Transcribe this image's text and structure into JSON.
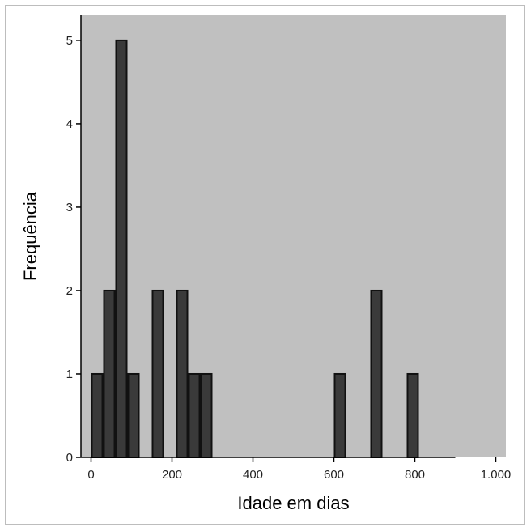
{
  "chart_data": {
    "type": "bar",
    "xlabel": "Idade em dias",
    "ylabel": "Frequência",
    "xlim": [
      -25,
      1025
    ],
    "ylim": [
      0,
      5.3
    ],
    "x_ticks": [
      {
        "value": 0,
        "label": "0"
      },
      {
        "value": 200,
        "label": "200"
      },
      {
        "value": 400,
        "label": "400"
      },
      {
        "value": 600,
        "label": "600"
      },
      {
        "value": 800,
        "label": "800"
      },
      {
        "value": 1000,
        "label": "1.000"
      }
    ],
    "y_ticks": [
      {
        "value": 0,
        "label": "0"
      },
      {
        "value": 1,
        "label": "1"
      },
      {
        "value": 2,
        "label": "2"
      },
      {
        "value": 3,
        "label": "3"
      },
      {
        "value": 4,
        "label": "4"
      },
      {
        "value": 5,
        "label": "5"
      }
    ],
    "bin_width": 30,
    "bins": [
      {
        "start": 0,
        "end": 30,
        "count": 1
      },
      {
        "start": 30,
        "end": 60,
        "count": 2
      },
      {
        "start": 60,
        "end": 90,
        "count": 5
      },
      {
        "start": 90,
        "end": 120,
        "count": 1
      },
      {
        "start": 150,
        "end": 180,
        "count": 2
      },
      {
        "start": 210,
        "end": 240,
        "count": 2
      },
      {
        "start": 240,
        "end": 270,
        "count": 1
      },
      {
        "start": 270,
        "end": 300,
        "count": 1
      },
      {
        "start": 600,
        "end": 630,
        "count": 1
      },
      {
        "start": 690,
        "end": 720,
        "count": 2
      },
      {
        "start": 780,
        "end": 810,
        "count": 1
      }
    ],
    "x_axis_extent": [
      0,
      900
    ],
    "colors": {
      "plot_background": "#c0c0c0",
      "bar_fill": "#3a3a3a",
      "bar_edge": "#111111",
      "axis": "#000000"
    },
    "grid": false,
    "legend": "none"
  }
}
